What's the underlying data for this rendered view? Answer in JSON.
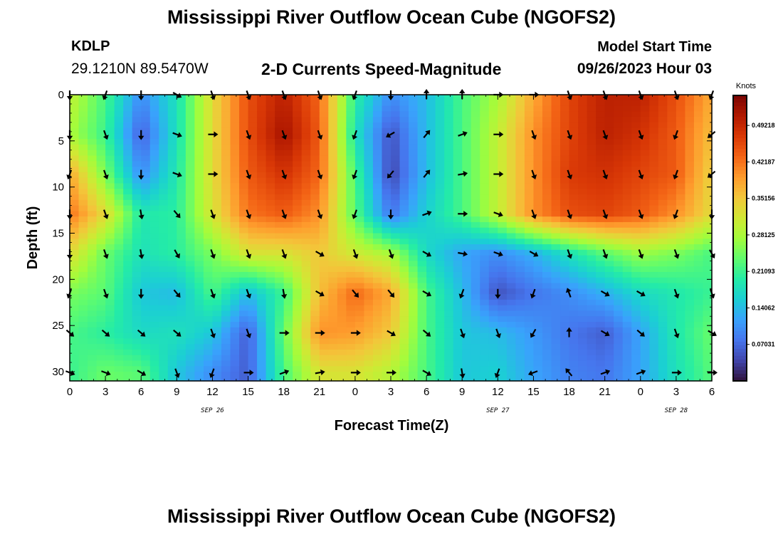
{
  "page": {
    "title": "Mississippi River Outflow Ocean Cube (NGOFS2)",
    "title_repeat": "Mississippi River Outflow Ocean Cube (NGOFS2)",
    "station": "KDLP",
    "coords": "29.1210N  89.5470W",
    "subtitle": "2-D Currents Speed-Magnitude",
    "model_start_label": "Model Start Time",
    "model_start_value": "09/26/2023 Hour 03"
  },
  "chart_data": {
    "type": "heatmap",
    "title": "2-D Currents Speed-Magnitude",
    "xlabel": "Forecast Time(Z)",
    "ylabel": "Depth (ft)",
    "x_ticks": [
      "0",
      "3",
      "6",
      "9",
      "12",
      "15",
      "18",
      "21",
      "0",
      "3",
      "6",
      "9",
      "12",
      "15",
      "18",
      "21",
      "0",
      "3",
      "6"
    ],
    "date_labels": [
      {
        "text": "SEP 26",
        "hour_index": 12
      },
      {
        "text": "SEP 27",
        "hour_index": 36
      },
      {
        "text": "SEP 28",
        "hour_index": 51
      }
    ],
    "x_range_hours": [
      0,
      54
    ],
    "y_ticks": [
      0,
      5,
      10,
      15,
      20,
      25,
      30
    ],
    "y_range_ft": [
      0,
      31
    ],
    "colorbar": {
      "units": "Knots",
      "range": [
        0,
        0.55
      ],
      "ticks": [
        "0.49218",
        "0.42187",
        "0.35156",
        "0.28125",
        "0.21093",
        "0.14062",
        "0.07031"
      ],
      "tick_values": [
        0.49218,
        0.42187,
        0.35156,
        0.28125,
        0.21093,
        0.14062,
        0.07031
      ],
      "colormap": [
        "#30123b",
        "#4145ab",
        "#4675ed",
        "#39a2fc",
        "#1bcfd4",
        "#24eca6",
        "#61fc6c",
        "#a4fc3b",
        "#d1e834",
        "#f3c63a",
        "#fe9b2d",
        "#f36315",
        "#d93806",
        "#b11901",
        "#7a0402"
      ]
    },
    "speed_grid": {
      "depths_ft": [
        0,
        4.3,
        8.6,
        12.9,
        17.2,
        21.5,
        25.8,
        30.1
      ],
      "hours": [
        0,
        3,
        6,
        9,
        12,
        15,
        18,
        21,
        24,
        27,
        30,
        33,
        36,
        39,
        42,
        45,
        48,
        51,
        54
      ],
      "values_knots": [
        [
          0.3,
          0.22,
          0.1,
          0.18,
          0.33,
          0.45,
          0.5,
          0.43,
          0.2,
          0.1,
          0.14,
          0.22,
          0.28,
          0.38,
          0.46,
          0.5,
          0.5,
          0.45,
          0.38
        ],
        [
          0.28,
          0.21,
          0.06,
          0.18,
          0.33,
          0.45,
          0.52,
          0.44,
          0.18,
          0.05,
          0.14,
          0.22,
          0.3,
          0.4,
          0.46,
          0.5,
          0.48,
          0.44,
          0.36
        ],
        [
          0.38,
          0.25,
          0.1,
          0.19,
          0.33,
          0.44,
          0.48,
          0.43,
          0.22,
          0.04,
          0.14,
          0.22,
          0.3,
          0.4,
          0.47,
          0.48,
          0.46,
          0.44,
          0.34
        ],
        [
          0.42,
          0.33,
          0.19,
          0.2,
          0.32,
          0.42,
          0.44,
          0.4,
          0.23,
          0.08,
          0.16,
          0.22,
          0.3,
          0.4,
          0.45,
          0.46,
          0.44,
          0.4,
          0.33
        ],
        [
          0.33,
          0.24,
          0.18,
          0.2,
          0.25,
          0.32,
          0.32,
          0.35,
          0.31,
          0.28,
          0.17,
          0.12,
          0.1,
          0.13,
          0.18,
          0.23,
          0.27,
          0.25,
          0.22
        ],
        [
          0.25,
          0.23,
          0.15,
          0.14,
          0.22,
          0.14,
          0.21,
          0.36,
          0.43,
          0.38,
          0.22,
          0.14,
          0.05,
          0.08,
          0.1,
          0.13,
          0.17,
          0.19,
          0.21
        ],
        [
          0.22,
          0.2,
          0.17,
          0.18,
          0.15,
          0.06,
          0.24,
          0.4,
          0.39,
          0.35,
          0.22,
          0.15,
          0.14,
          0.11,
          0.08,
          0.06,
          0.12,
          0.19,
          0.24
        ],
        [
          0.21,
          0.24,
          0.23,
          0.15,
          0.1,
          0.06,
          0.22,
          0.32,
          0.32,
          0.29,
          0.22,
          0.15,
          0.16,
          0.12,
          0.09,
          0.08,
          0.12,
          0.18,
          0.23
        ]
      ]
    },
    "current_vectors": {
      "depths_ft": [
        0,
        4.3,
        8.6,
        12.9,
        17.2,
        21.5,
        25.8,
        30.1
      ],
      "hours": [
        0,
        3,
        6,
        9,
        12,
        15,
        18,
        21,
        24,
        27,
        30,
        33,
        36,
        39,
        42,
        45,
        48,
        51,
        54
      ],
      "direction_deg": [
        [
          180,
          200,
          180,
          120,
          160,
          160,
          160,
          160,
          200,
          180,
          0,
          0,
          90,
          90,
          160,
          160,
          160,
          160,
          200
        ],
        [
          180,
          160,
          180,
          110,
          90,
          160,
          160,
          160,
          200,
          240,
          40,
          70,
          90,
          160,
          160,
          160,
          160,
          200,
          230
        ],
        [
          200,
          160,
          180,
          110,
          90,
          160,
          160,
          160,
          200,
          220,
          40,
          80,
          90,
          160,
          160,
          160,
          160,
          200,
          230
        ],
        [
          180,
          160,
          170,
          140,
          160,
          160,
          160,
          160,
          200,
          180,
          70,
          90,
          110,
          160,
          160,
          160,
          160,
          200,
          180
        ],
        [
          180,
          160,
          170,
          150,
          160,
          160,
          160,
          120,
          160,
          160,
          120,
          100,
          110,
          120,
          160,
          160,
          160,
          160,
          150
        ],
        [
          200,
          160,
          180,
          140,
          160,
          160,
          170,
          120,
          140,
          140,
          120,
          200,
          180,
          200,
          340,
          120,
          120,
          160,
          160
        ],
        [
          130,
          130,
          130,
          130,
          160,
          160,
          90,
          90,
          90,
          120,
          130,
          160,
          160,
          210,
          0,
          120,
          130,
          160,
          120
        ],
        [
          110,
          110,
          120,
          160,
          200,
          90,
          70,
          80,
          90,
          90,
          120,
          170,
          200,
          250,
          320,
          70,
          70,
          90,
          90
        ]
      ]
    }
  }
}
